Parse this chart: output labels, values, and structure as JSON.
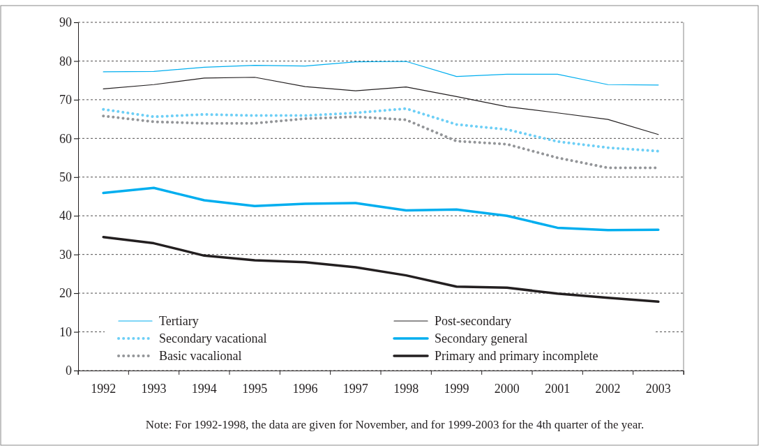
{
  "chart_data": {
    "type": "line",
    "categories": [
      "1992",
      "1993",
      "1994",
      "1995",
      "1996",
      "1997",
      "1998",
      "1999",
      "2000",
      "2001",
      "2002",
      "2003"
    ],
    "ylim": [
      0,
      90
    ],
    "yticks": [
      0,
      10,
      20,
      30,
      40,
      50,
      60,
      70,
      80,
      90
    ],
    "grid": "y",
    "legend": "bottom",
    "marker": "none",
    "series": [
      {
        "name": "Tertiary",
        "color": "#00aeef",
        "line_style": "solid",
        "values": [
          77.2,
          77.3,
          78.4,
          78.9,
          78.7,
          79.8,
          79.9,
          76.0,
          76.6,
          76.6,
          73.9,
          73.8
        ]
      },
      {
        "name": "Post-secondary",
        "color": "#231f20",
        "line_style": "solid",
        "values": [
          72.8,
          73.9,
          75.6,
          75.8,
          73.4,
          72.3,
          73.3,
          70.8,
          68.2,
          66.6,
          64.9,
          61.0
        ]
      },
      {
        "name": "Secondary vacational",
        "color": "#6dcff6",
        "line_style": "dotted",
        "values": [
          67.5,
          65.6,
          66.2,
          65.9,
          65.9,
          66.6,
          67.7,
          63.6,
          62.3,
          59.2,
          57.6,
          56.7
        ]
      },
      {
        "name": "Secondary general",
        "color": "#00aeef",
        "line_style": "solid",
        "values": [
          45.9,
          47.2,
          44.0,
          42.5,
          43.1,
          43.3,
          41.4,
          41.6,
          40.0,
          36.9,
          36.3,
          36.4
        ]
      },
      {
        "name": "Basic vacalional",
        "color": "#939598",
        "line_style": "dotted",
        "values": [
          65.8,
          64.3,
          63.9,
          63.9,
          65.1,
          65.6,
          64.8,
          59.3,
          58.5,
          55.0,
          52.4,
          52.4
        ]
      },
      {
        "name": "Primary and primary incomplete",
        "color": "#231f20",
        "line_style": "solid",
        "values": [
          34.5,
          32.9,
          29.7,
          28.5,
          28.0,
          26.7,
          24.6,
          21.7,
          21.4,
          19.9,
          18.8,
          17.8
        ]
      }
    ],
    "annotations": [
      "Note: For 1992-1998, the data are given for November, and for 1999-2003 for the 4th quarter of the year."
    ]
  }
}
